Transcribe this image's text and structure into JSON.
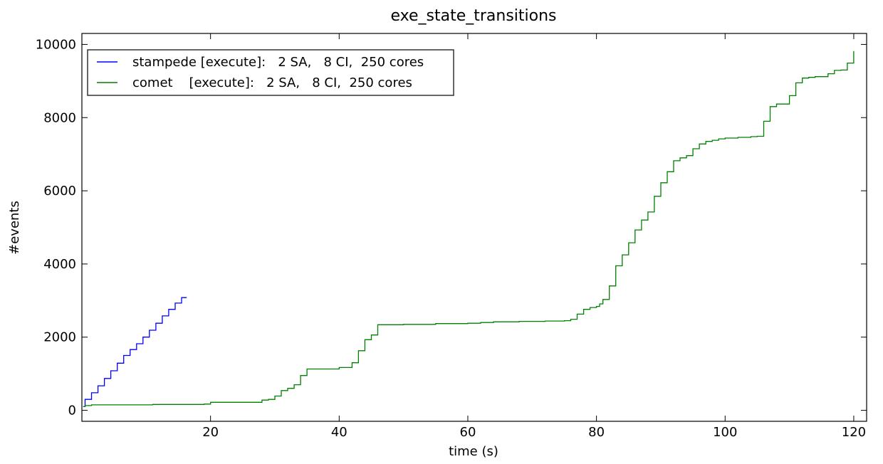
{
  "chart_data": {
    "type": "line",
    "step": true,
    "title": "exe_state_transitions",
    "xlabel": "time (s)",
    "ylabel": "#events",
    "xlim": [
      0,
      122
    ],
    "ylim": [
      -300,
      10300
    ],
    "xticks": [
      20,
      40,
      60,
      80,
      100,
      120
    ],
    "yticks": [
      0,
      2000,
      4000,
      6000,
      8000,
      10000
    ],
    "grid": false,
    "legend_position": "top-left",
    "series": [
      {
        "name": "stampede [execute]:   2 SA,   8 CI,  250 cores",
        "color": "#0000ff",
        "x": [
          0.2,
          0.5,
          1.5,
          2.5,
          3.5,
          4.5,
          5.5,
          6.5,
          7.5,
          8.5,
          9.5,
          10.5,
          11.5,
          12.5,
          13.5,
          14.5,
          15.5,
          16.3
        ],
        "y": [
          100,
          300,
          480,
          670,
          870,
          1080,
          1290,
          1500,
          1660,
          1820,
          2000,
          2190,
          2380,
          2580,
          2760,
          2930,
          3080,
          3080
        ]
      },
      {
        "name": "comet    [execute]:   2 SA,   8 CI,  250 cores",
        "color": "#008000",
        "x": [
          0.2,
          0.5,
          1.5,
          10,
          11,
          19,
          20,
          28,
          29,
          30,
          31,
          32,
          33,
          34,
          35,
          40,
          42,
          43,
          44,
          45,
          46,
          50,
          55,
          60,
          62,
          64,
          68,
          72,
          75,
          76,
          77,
          78,
          79,
          80,
          80.5,
          81,
          82,
          83,
          84,
          85,
          86,
          87,
          88,
          89,
          90,
          91,
          92,
          93,
          94,
          95,
          96,
          97,
          98,
          99,
          100,
          102,
          104,
          105,
          106,
          107,
          108,
          109,
          110,
          111,
          112,
          113,
          114,
          115,
          116,
          117,
          118,
          119,
          120
        ],
        "y": [
          100,
          130,
          150,
          150,
          160,
          170,
          220,
          280,
          300,
          390,
          540,
          600,
          700,
          950,
          1130,
          1170,
          1300,
          1630,
          1930,
          2060,
          2340,
          2350,
          2370,
          2380,
          2400,
          2420,
          2430,
          2440,
          2450,
          2490,
          2630,
          2760,
          2810,
          2840,
          2910,
          3030,
          3400,
          3950,
          4250,
          4580,
          4930,
          5200,
          5420,
          5850,
          6220,
          6520,
          6820,
          6900,
          6960,
          7150,
          7280,
          7350,
          7380,
          7420,
          7440,
          7460,
          7480,
          7490,
          7900,
          8300,
          8370,
          8370,
          8600,
          8950,
          9080,
          9100,
          9120,
          9120,
          9200,
          9290,
          9300,
          9490,
          9820
        ]
      }
    ]
  }
}
